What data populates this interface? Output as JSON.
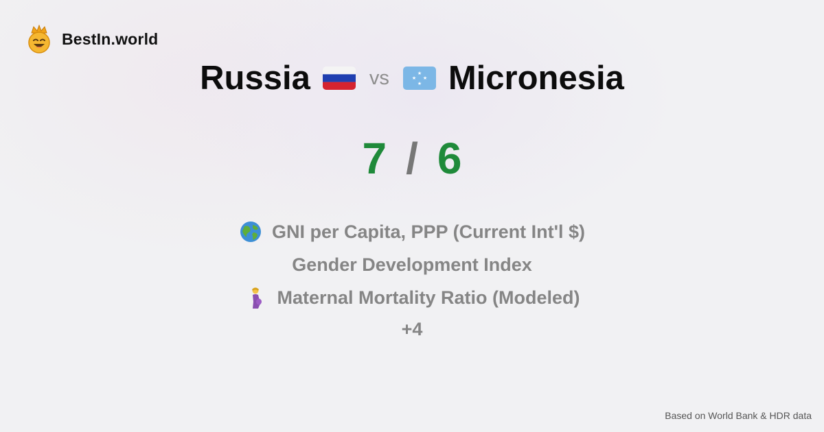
{
  "brand": {
    "name": "BestIn.world",
    "icon": "crowned-smiley-icon"
  },
  "comparison": {
    "left": {
      "name": "Russia",
      "flag": "russia-flag-icon"
    },
    "vs_label": "vs",
    "right": {
      "name": "Micronesia",
      "flag": "micronesia-flag-icon"
    }
  },
  "score": {
    "left": "7",
    "separator": "/",
    "right": "6",
    "color": "#1f8a3a"
  },
  "metrics": [
    {
      "label": "GNI per Capita, PPP (Current Int'l $)",
      "icon": "globe-icon"
    },
    {
      "label": "Gender Development Index",
      "icon": ""
    },
    {
      "label": "Maternal Mortality Ratio (Modeled)",
      "icon": "pregnant-woman-icon"
    }
  ],
  "more_label": "+4",
  "footer": "Based on World Bank & HDR data"
}
